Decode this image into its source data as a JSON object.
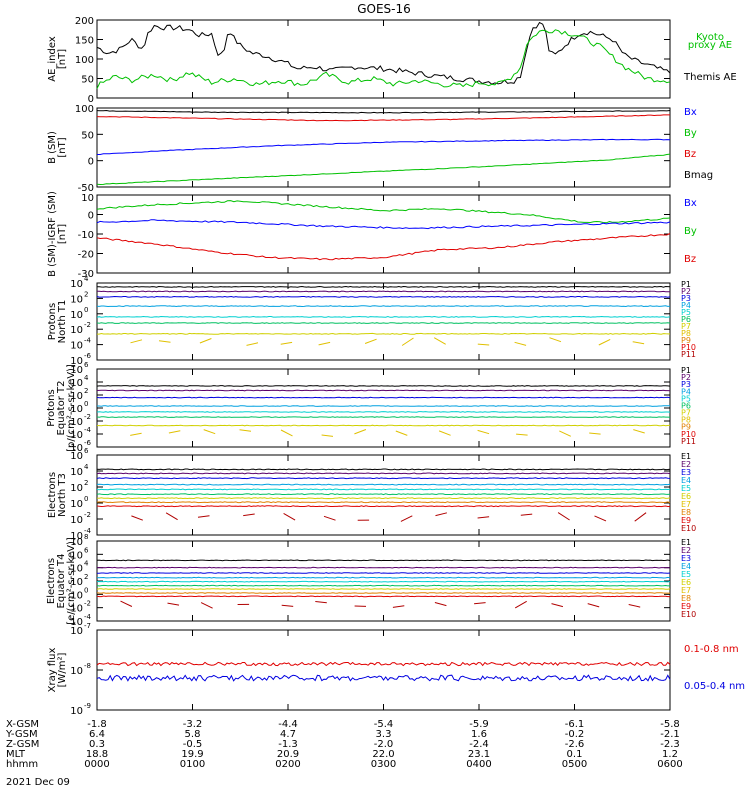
{
  "title": "GOES-16",
  "date_label": "2021 Dec 09",
  "chart_data": [
    {
      "id": "ae",
      "type": "line",
      "ylabel": [
        "AE_index",
        "[nT]"
      ],
      "ylim": [
        0,
        200
      ],
      "yticks": [
        0,
        50,
        100,
        150,
        200
      ],
      "legend": [
        {
          "text": "Kyoto",
          "color": "#00c000"
        },
        {
          "text": "proxy AE",
          "color": "#00c000"
        },
        {
          "text": "Themis AE",
          "color": "#000000"
        }
      ],
      "series": [
        {
          "name": "Themis AE",
          "color": "#000000",
          "t": [
            0,
            0.02,
            0.04,
            0.06,
            0.08,
            0.09,
            0.1,
            0.12,
            0.14,
            0.16,
            0.18,
            0.2,
            0.21,
            0.22,
            0.23,
            0.24,
            0.25,
            0.27,
            0.29,
            0.31,
            0.33,
            0.35,
            0.38,
            0.41,
            0.45,
            0.5,
            0.55,
            0.6,
            0.63,
            0.66,
            0.7,
            0.73,
            0.74,
            0.75,
            0.76,
            0.77,
            0.78,
            0.79,
            0.8,
            0.82,
            0.84,
            0.86,
            0.88,
            0.9,
            0.92,
            0.94,
            0.96,
            1.0
          ],
          "values": [
            130,
            115,
            125,
            150,
            125,
            170,
            185,
            180,
            180,
            175,
            160,
            165,
            115,
            110,
            180,
            150,
            135,
            115,
            110,
            100,
            90,
            75,
            80,
            70,
            80,
            75,
            65,
            55,
            50,
            45,
            40,
            45,
            60,
            130,
            180,
            190,
            190,
            115,
            110,
            140,
            165,
            170,
            160,
            150,
            110,
            95,
            85,
            65
          ]
        },
        {
          "name": "Kyoto proxy AE",
          "color": "#00c000",
          "t": [
            0,
            0.03,
            0.06,
            0.1,
            0.13,
            0.16,
            0.2,
            0.24,
            0.28,
            0.32,
            0.36,
            0.4,
            0.44,
            0.48,
            0.52,
            0.56,
            0.6,
            0.64,
            0.67,
            0.7,
            0.72,
            0.74,
            0.75,
            0.77,
            0.8,
            0.84,
            0.88,
            0.92,
            0.96,
            1.0
          ],
          "values": [
            30,
            55,
            45,
            60,
            45,
            65,
            40,
            50,
            35,
            45,
            35,
            60,
            40,
            50,
            35,
            45,
            35,
            30,
            40,
            35,
            50,
            80,
            140,
            170,
            175,
            160,
            130,
            80,
            50,
            45
          ]
        }
      ]
    },
    {
      "id": "bsm",
      "type": "line",
      "ylabel": [
        "B (SM)",
        "[nT]"
      ],
      "ylim": [
        -50,
        100
      ],
      "yticks": [
        -50,
        0,
        50,
        100
      ],
      "legend": [
        {
          "text": "Bx",
          "color": "#0000ff"
        },
        {
          "text": "By",
          "color": "#00c000"
        },
        {
          "text": "Bz",
          "color": "#e00000"
        },
        {
          "text": "Bmag",
          "color": "#000000"
        }
      ],
      "series": [
        {
          "name": "Bmag",
          "color": "#000000",
          "t": [
            0,
            0.2,
            0.5,
            0.8,
            1.0
          ],
          "values": [
            95,
            92,
            91,
            93,
            95
          ]
        },
        {
          "name": "Bz",
          "color": "#e00000",
          "t": [
            0,
            0.2,
            0.4,
            0.6,
            0.8,
            1.0
          ],
          "values": [
            84,
            80,
            76,
            78,
            82,
            87
          ]
        },
        {
          "name": "Bx",
          "color": "#0000ff",
          "t": [
            0,
            0.1,
            0.3,
            0.5,
            0.7,
            0.9,
            1.0
          ],
          "values": [
            12,
            18,
            28,
            35,
            38,
            40,
            40
          ]
        },
        {
          "name": "By",
          "color": "#00c000",
          "t": [
            0,
            0.1,
            0.3,
            0.5,
            0.7,
            0.9,
            1.0
          ],
          "values": [
            -45,
            -40,
            -30,
            -20,
            -10,
            2,
            12
          ]
        }
      ]
    },
    {
      "id": "bigrf",
      "type": "line",
      "ylabel": [
        "B (SM)-IGRF (SM)",
        "[nT]"
      ],
      "ylim": [
        -30,
        10
      ],
      "yticks": [
        -30,
        -20,
        -10,
        0
      ],
      "extra_tick_labels": [
        "10"
      ],
      "legend": [
        {
          "text": "Bx",
          "color": "#0000ff"
        },
        {
          "text": "By",
          "color": "#00c000"
        },
        {
          "text": "Bz",
          "color": "#e00000"
        }
      ],
      "series": [
        {
          "name": "By",
          "color": "#00c000",
          "t": [
            0,
            0.1,
            0.25,
            0.4,
            0.5,
            0.6,
            0.75,
            0.85,
            0.9,
            1.0
          ],
          "values": [
            3,
            5,
            7,
            4,
            2,
            3,
            0,
            -4,
            -4,
            -2
          ]
        },
        {
          "name": "Bx",
          "color": "#0000ff",
          "t": [
            0,
            0.1,
            0.25,
            0.4,
            0.55,
            0.7,
            0.85,
            1.0
          ],
          "values": [
            -4,
            -3,
            -4,
            -6,
            -7,
            -6,
            -5,
            -4
          ]
        },
        {
          "name": "Bz",
          "color": "#e00000",
          "t": [
            0,
            0.1,
            0.2,
            0.3,
            0.4,
            0.5,
            0.6,
            0.7,
            0.8,
            0.9,
            1.0
          ],
          "values": [
            -12,
            -15,
            -19,
            -22,
            -23,
            -22,
            -18,
            -17,
            -14,
            -12,
            -10
          ]
        }
      ]
    },
    {
      "id": "protons_t1",
      "type": "line",
      "log": true,
      "ylabel": [
        "Protons",
        "North T1"
      ],
      "ylim": [
        -6,
        4
      ],
      "ytick_exps": [
        -6,
        -4,
        -2,
        0,
        2,
        4
      ],
      "legend": [
        {
          "text": "P1",
          "color": "#000000"
        },
        {
          "text": "P2",
          "color": "#5a006a"
        },
        {
          "text": "P3",
          "color": "#0000e0"
        },
        {
          "text": "P4",
          "color": "#00a0e0"
        },
        {
          "text": "P5",
          "color": "#00d0d0"
        },
        {
          "text": "P6",
          "color": "#00c060"
        },
        {
          "text": "P7",
          "color": "#d0d000"
        },
        {
          "text": "P8",
          "color": "#e0c000"
        },
        {
          "text": "P9",
          "color": "#e08000"
        },
        {
          "text": "P10",
          "color": "#e00000"
        },
        {
          "text": "P11",
          "color": "#b00000"
        }
      ],
      "series": [
        {
          "name": "P1",
          "color": "#000000",
          "level": 3.5
        },
        {
          "name": "P2",
          "color": "#5a006a",
          "level": 2.9
        },
        {
          "name": "P3",
          "color": "#0000e0",
          "level": 2.2
        },
        {
          "name": "P4",
          "color": "#00a0e0",
          "level": 1.0
        },
        {
          "name": "P5",
          "color": "#00d0d0",
          "level": -0.4
        },
        {
          "name": "P6",
          "color": "#00c060",
          "level": -1.2
        },
        {
          "name": "P7",
          "color": "#d0d000",
          "level": -2.6
        },
        {
          "name": "P8",
          "color": "#e0c000",
          "level": -3.7,
          "sparse": true
        }
      ]
    },
    {
      "id": "protons_t2",
      "type": "line",
      "log": true,
      "ylabel": [
        "Protons",
        "Equator T2",
        "[p/(cm²-s-sr-keV)]"
      ],
      "ylim": [
        -6,
        6
      ],
      "ytick_exps": [
        -6,
        -4,
        -2,
        0,
        2,
        4,
        6
      ],
      "legend": [
        {
          "text": "P1",
          "color": "#000000"
        },
        {
          "text": "P2",
          "color": "#5a006a"
        },
        {
          "text": "P3",
          "color": "#0000e0"
        },
        {
          "text": "P4",
          "color": "#00a0e0"
        },
        {
          "text": "P5",
          "color": "#00d0d0"
        },
        {
          "text": "P6",
          "color": "#00c060"
        },
        {
          "text": "P7",
          "color": "#d0d000"
        },
        {
          "text": "P8",
          "color": "#e0c000"
        },
        {
          "text": "P9",
          "color": "#e08000"
        },
        {
          "text": "P10",
          "color": "#e00000"
        },
        {
          "text": "P11",
          "color": "#b00000"
        }
      ],
      "series": [
        {
          "name": "P1",
          "color": "#000000",
          "level": 3.4
        },
        {
          "name": "P2",
          "color": "#5a006a",
          "level": 2.7
        },
        {
          "name": "P3",
          "color": "#0000e0",
          "level": 1.6
        },
        {
          "name": "P4",
          "color": "#00a0e0",
          "level": 0.3
        },
        {
          "name": "P5",
          "color": "#00d0d0",
          "level": -0.6
        },
        {
          "name": "P6",
          "color": "#00c060",
          "level": -1.4
        },
        {
          "name": "P7",
          "color": "#d0d000",
          "level": -2.7
        },
        {
          "name": "P8",
          "color": "#e0c000",
          "level": -3.8,
          "sparse": true
        }
      ]
    },
    {
      "id": "electrons_t3",
      "type": "line",
      "log": true,
      "ylabel": [
        "Electrons",
        "North T3"
      ],
      "ylim": [
        -4,
        6
      ],
      "ytick_exps": [
        -4,
        -2,
        0,
        2,
        4,
        6
      ],
      "legend": [
        {
          "text": "E1",
          "color": "#000000"
        },
        {
          "text": "E2",
          "color": "#5a006a"
        },
        {
          "text": "E3",
          "color": "#0000e0"
        },
        {
          "text": "E4",
          "color": "#00a0e0"
        },
        {
          "text": "E5",
          "color": "#00d0d0"
        },
        {
          "text": "E6",
          "color": "#d0d000"
        },
        {
          "text": "E7",
          "color": "#e0c000"
        },
        {
          "text": "E8",
          "color": "#e08000"
        },
        {
          "text": "E9",
          "color": "#e00000"
        },
        {
          "text": "E10",
          "color": "#b00000"
        }
      ],
      "series": [
        {
          "name": "E1",
          "color": "#000000",
          "level": 4.2
        },
        {
          "name": "E2",
          "color": "#5a006a",
          "level": 3.7
        },
        {
          "name": "E3",
          "color": "#0000e0",
          "level": 3.1
        },
        {
          "name": "E4",
          "color": "#00a0e0",
          "level": 2.3
        },
        {
          "name": "E5",
          "color": "#00d0d0",
          "level": 1.7
        },
        {
          "name": "E6",
          "color": "#00c060",
          "level": 1.1
        },
        {
          "name": "E7",
          "color": "#d0d000",
          "level": 0.6
        },
        {
          "name": "E8",
          "color": "#e08000",
          "level": 0.1
        },
        {
          "name": "E9",
          "color": "#e00000",
          "level": -0.4
        },
        {
          "name": "E10",
          "color": "#b00000",
          "level": -1.8,
          "sparse": true
        }
      ]
    },
    {
      "id": "electrons_t4",
      "type": "line",
      "log": true,
      "ylabel": [
        "Electrons",
        "Equator T4",
        "[e/(cm²-s-sr-keV)]"
      ],
      "ylim": [
        -4,
        8
      ],
      "ytick_exps": [
        -4,
        -2,
        0,
        2,
        4,
        6,
        8
      ],
      "legend": [
        {
          "text": "E1",
          "color": "#000000"
        },
        {
          "text": "E2",
          "color": "#5a006a"
        },
        {
          "text": "E3",
          "color": "#0000e0"
        },
        {
          "text": "E4",
          "color": "#00a0e0"
        },
        {
          "text": "E5",
          "color": "#00d0d0"
        },
        {
          "text": "E6",
          "color": "#d0d000"
        },
        {
          "text": "E7",
          "color": "#e0c000"
        },
        {
          "text": "E8",
          "color": "#e08000"
        },
        {
          "text": "E9",
          "color": "#e00000"
        },
        {
          "text": "E10",
          "color": "#b00000"
        }
      ],
      "series": [
        {
          "name": "E1",
          "color": "#000000",
          "level": 5.1
        },
        {
          "name": "E2",
          "color": "#5a006a",
          "level": 4.0
        },
        {
          "name": "E3",
          "color": "#0000e0",
          "level": 3.2
        },
        {
          "name": "E4",
          "color": "#00a0e0",
          "level": 2.5
        },
        {
          "name": "E5",
          "color": "#00d0d0",
          "level": 1.9
        },
        {
          "name": "E6",
          "color": "#00c060",
          "level": 1.3
        },
        {
          "name": "E7",
          "color": "#d0d000",
          "level": 0.8
        },
        {
          "name": "E8",
          "color": "#e08000",
          "level": 0.2
        },
        {
          "name": "E9",
          "color": "#e00000",
          "level": -0.3
        },
        {
          "name": "E10",
          "color": "#b00000",
          "level": -1.5,
          "sparse": true
        }
      ]
    },
    {
      "id": "xray",
      "type": "line",
      "log": true,
      "ylabel": [
        "Xray flux",
        "[W/m²]"
      ],
      "ylim": [
        -9,
        -7
      ],
      "ytick_exps": [
        -9,
        -8,
        -7
      ],
      "legend": [
        {
          "text": "0.1-0.8 nm",
          "color": "#e00000"
        },
        {
          "text": "0.05-0.4 nm",
          "color": "#0000e0"
        }
      ],
      "series": [
        {
          "name": "0.1-0.8 nm",
          "color": "#e00000",
          "level": -7.85,
          "noise": 0.04
        },
        {
          "name": "0.05-0.4 nm",
          "color": "#0000e0",
          "level": -8.2,
          "noise": 0.07
        }
      ]
    }
  ],
  "time_axis": {
    "row_labels": [
      "X-GSM",
      "Y-GSM",
      "Z-GSM",
      "MLT",
      "hhmm"
    ],
    "columns": [
      [
        "-1.8",
        "6.4",
        "0.3",
        "18.8",
        "0000"
      ],
      [
        "-3.2",
        "5.8",
        "-0.5",
        "19.9",
        "0100"
      ],
      [
        "-4.4",
        "4.7",
        "-1.3",
        "20.9",
        "0200"
      ],
      [
        "-5.4",
        "3.3",
        "-2.0",
        "22.0",
        "0300"
      ],
      [
        "-5.9",
        "1.6",
        "-2.4",
        "23.1",
        "0400"
      ],
      [
        "-6.1",
        "-0.2",
        "-2.6",
        "0.1",
        "0500"
      ],
      [
        "-5.8",
        "-2.1",
        "-2.3",
        "1.2",
        "0600"
      ]
    ]
  }
}
